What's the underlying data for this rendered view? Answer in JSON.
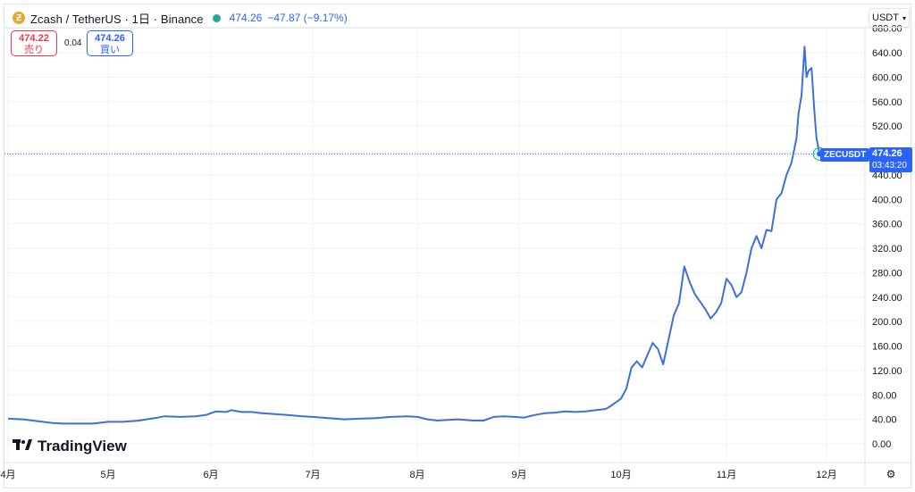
{
  "header": {
    "title": "Zcash / TetherUS · 1日 · Binance",
    "last": "474.26",
    "change": "−47.87 (−9.17%)"
  },
  "quote": {
    "sell_price": "474.22",
    "sell_label": "売り",
    "spread": "0.04",
    "buy_price": "474.26",
    "buy_label": "買い"
  },
  "currency": "USDT",
  "branding": {
    "logo_text": "TradingView"
  },
  "price_tag": {
    "symbol": "ZECUSDT",
    "price": "474.26",
    "countdown": "03:43:20"
  },
  "colors": {
    "line": "#3f6fd8",
    "accent": "#2962ff",
    "sell": "#f23645",
    "grid": "#f0f3fa"
  },
  "chart_data": {
    "type": "line",
    "x_tick_labels": [
      "4月",
      "5月",
      "6月",
      "7月",
      "8月",
      "9月",
      "10月",
      "11月",
      "12月"
    ],
    "y_tick_labels": [
      "0.00",
      "40.00",
      "80.00",
      "120.00",
      "160.00",
      "200.00",
      "240.00",
      "280.00",
      "320.00",
      "360.00",
      "400.00",
      "440.00",
      "520.00",
      "560.00",
      "600.00",
      "640.00",
      "680.00"
    ],
    "ylim": [
      -20,
      690
    ],
    "grid": true,
    "x_month_index_range": [
      0,
      8.3
    ],
    "series": [
      {
        "values": [
          [
            0.0,
            41
          ],
          [
            0.15,
            40
          ],
          [
            0.3,
            37
          ],
          [
            0.45,
            34
          ],
          [
            0.55,
            33
          ],
          [
            0.7,
            33
          ],
          [
            0.85,
            33
          ],
          [
            1.0,
            36
          ],
          [
            1.15,
            36
          ],
          [
            1.3,
            38
          ],
          [
            1.45,
            42
          ],
          [
            1.55,
            45
          ],
          [
            1.7,
            44
          ],
          [
            1.85,
            45
          ],
          [
            1.95,
            47
          ],
          [
            2.05,
            53
          ],
          [
            2.15,
            52
          ],
          [
            2.2,
            55
          ],
          [
            2.3,
            52
          ],
          [
            2.4,
            52
          ],
          [
            2.5,
            50
          ],
          [
            2.6,
            49
          ],
          [
            2.75,
            47
          ],
          [
            2.9,
            45
          ],
          [
            3.0,
            44
          ],
          [
            3.15,
            42
          ],
          [
            3.3,
            40
          ],
          [
            3.45,
            41
          ],
          [
            3.6,
            42
          ],
          [
            3.75,
            44
          ],
          [
            3.9,
            45
          ],
          [
            4.0,
            44
          ],
          [
            4.1,
            40
          ],
          [
            4.2,
            38
          ],
          [
            4.3,
            39
          ],
          [
            4.4,
            40
          ],
          [
            4.55,
            38
          ],
          [
            4.65,
            38
          ],
          [
            4.75,
            44
          ],
          [
            4.85,
            45
          ],
          [
            4.95,
            44
          ],
          [
            5.05,
            43
          ],
          [
            5.15,
            47
          ],
          [
            5.25,
            50
          ],
          [
            5.35,
            51
          ],
          [
            5.45,
            53
          ],
          [
            5.55,
            52
          ],
          [
            5.65,
            53
          ],
          [
            5.75,
            55
          ],
          [
            5.85,
            57
          ],
          [
            5.9,
            62
          ],
          [
            6.0,
            74
          ],
          [
            6.05,
            90
          ],
          [
            6.1,
            125
          ],
          [
            6.15,
            135
          ],
          [
            6.2,
            125
          ],
          [
            6.3,
            165
          ],
          [
            6.35,
            155
          ],
          [
            6.4,
            130
          ],
          [
            6.45,
            170
          ],
          [
            6.5,
            210
          ],
          [
            6.55,
            230
          ],
          [
            6.6,
            290
          ],
          [
            6.65,
            265
          ],
          [
            6.7,
            245
          ],
          [
            6.8,
            220
          ],
          [
            6.85,
            205
          ],
          [
            6.9,
            215
          ],
          [
            6.95,
            230
          ],
          [
            7.0,
            270
          ],
          [
            7.05,
            260
          ],
          [
            7.1,
            240
          ],
          [
            7.15,
            248
          ],
          [
            7.2,
            280
          ],
          [
            7.25,
            320
          ],
          [
            7.3,
            340
          ],
          [
            7.35,
            320
          ],
          [
            7.4,
            350
          ],
          [
            7.45,
            348
          ],
          [
            7.5,
            400
          ],
          [
            7.55,
            410
          ],
          [
            7.6,
            440
          ],
          [
            7.65,
            460
          ],
          [
            7.7,
            500
          ],
          [
            7.72,
            540
          ],
          [
            7.75,
            570
          ],
          [
            7.78,
            650
          ],
          [
            7.8,
            600
          ],
          [
            7.82,
            610
          ],
          [
            7.85,
            615
          ],
          [
            7.88,
            540
          ],
          [
            7.9,
            500
          ],
          [
            7.93,
            474.26
          ]
        ]
      }
    ],
    "last_value": 474.26
  }
}
